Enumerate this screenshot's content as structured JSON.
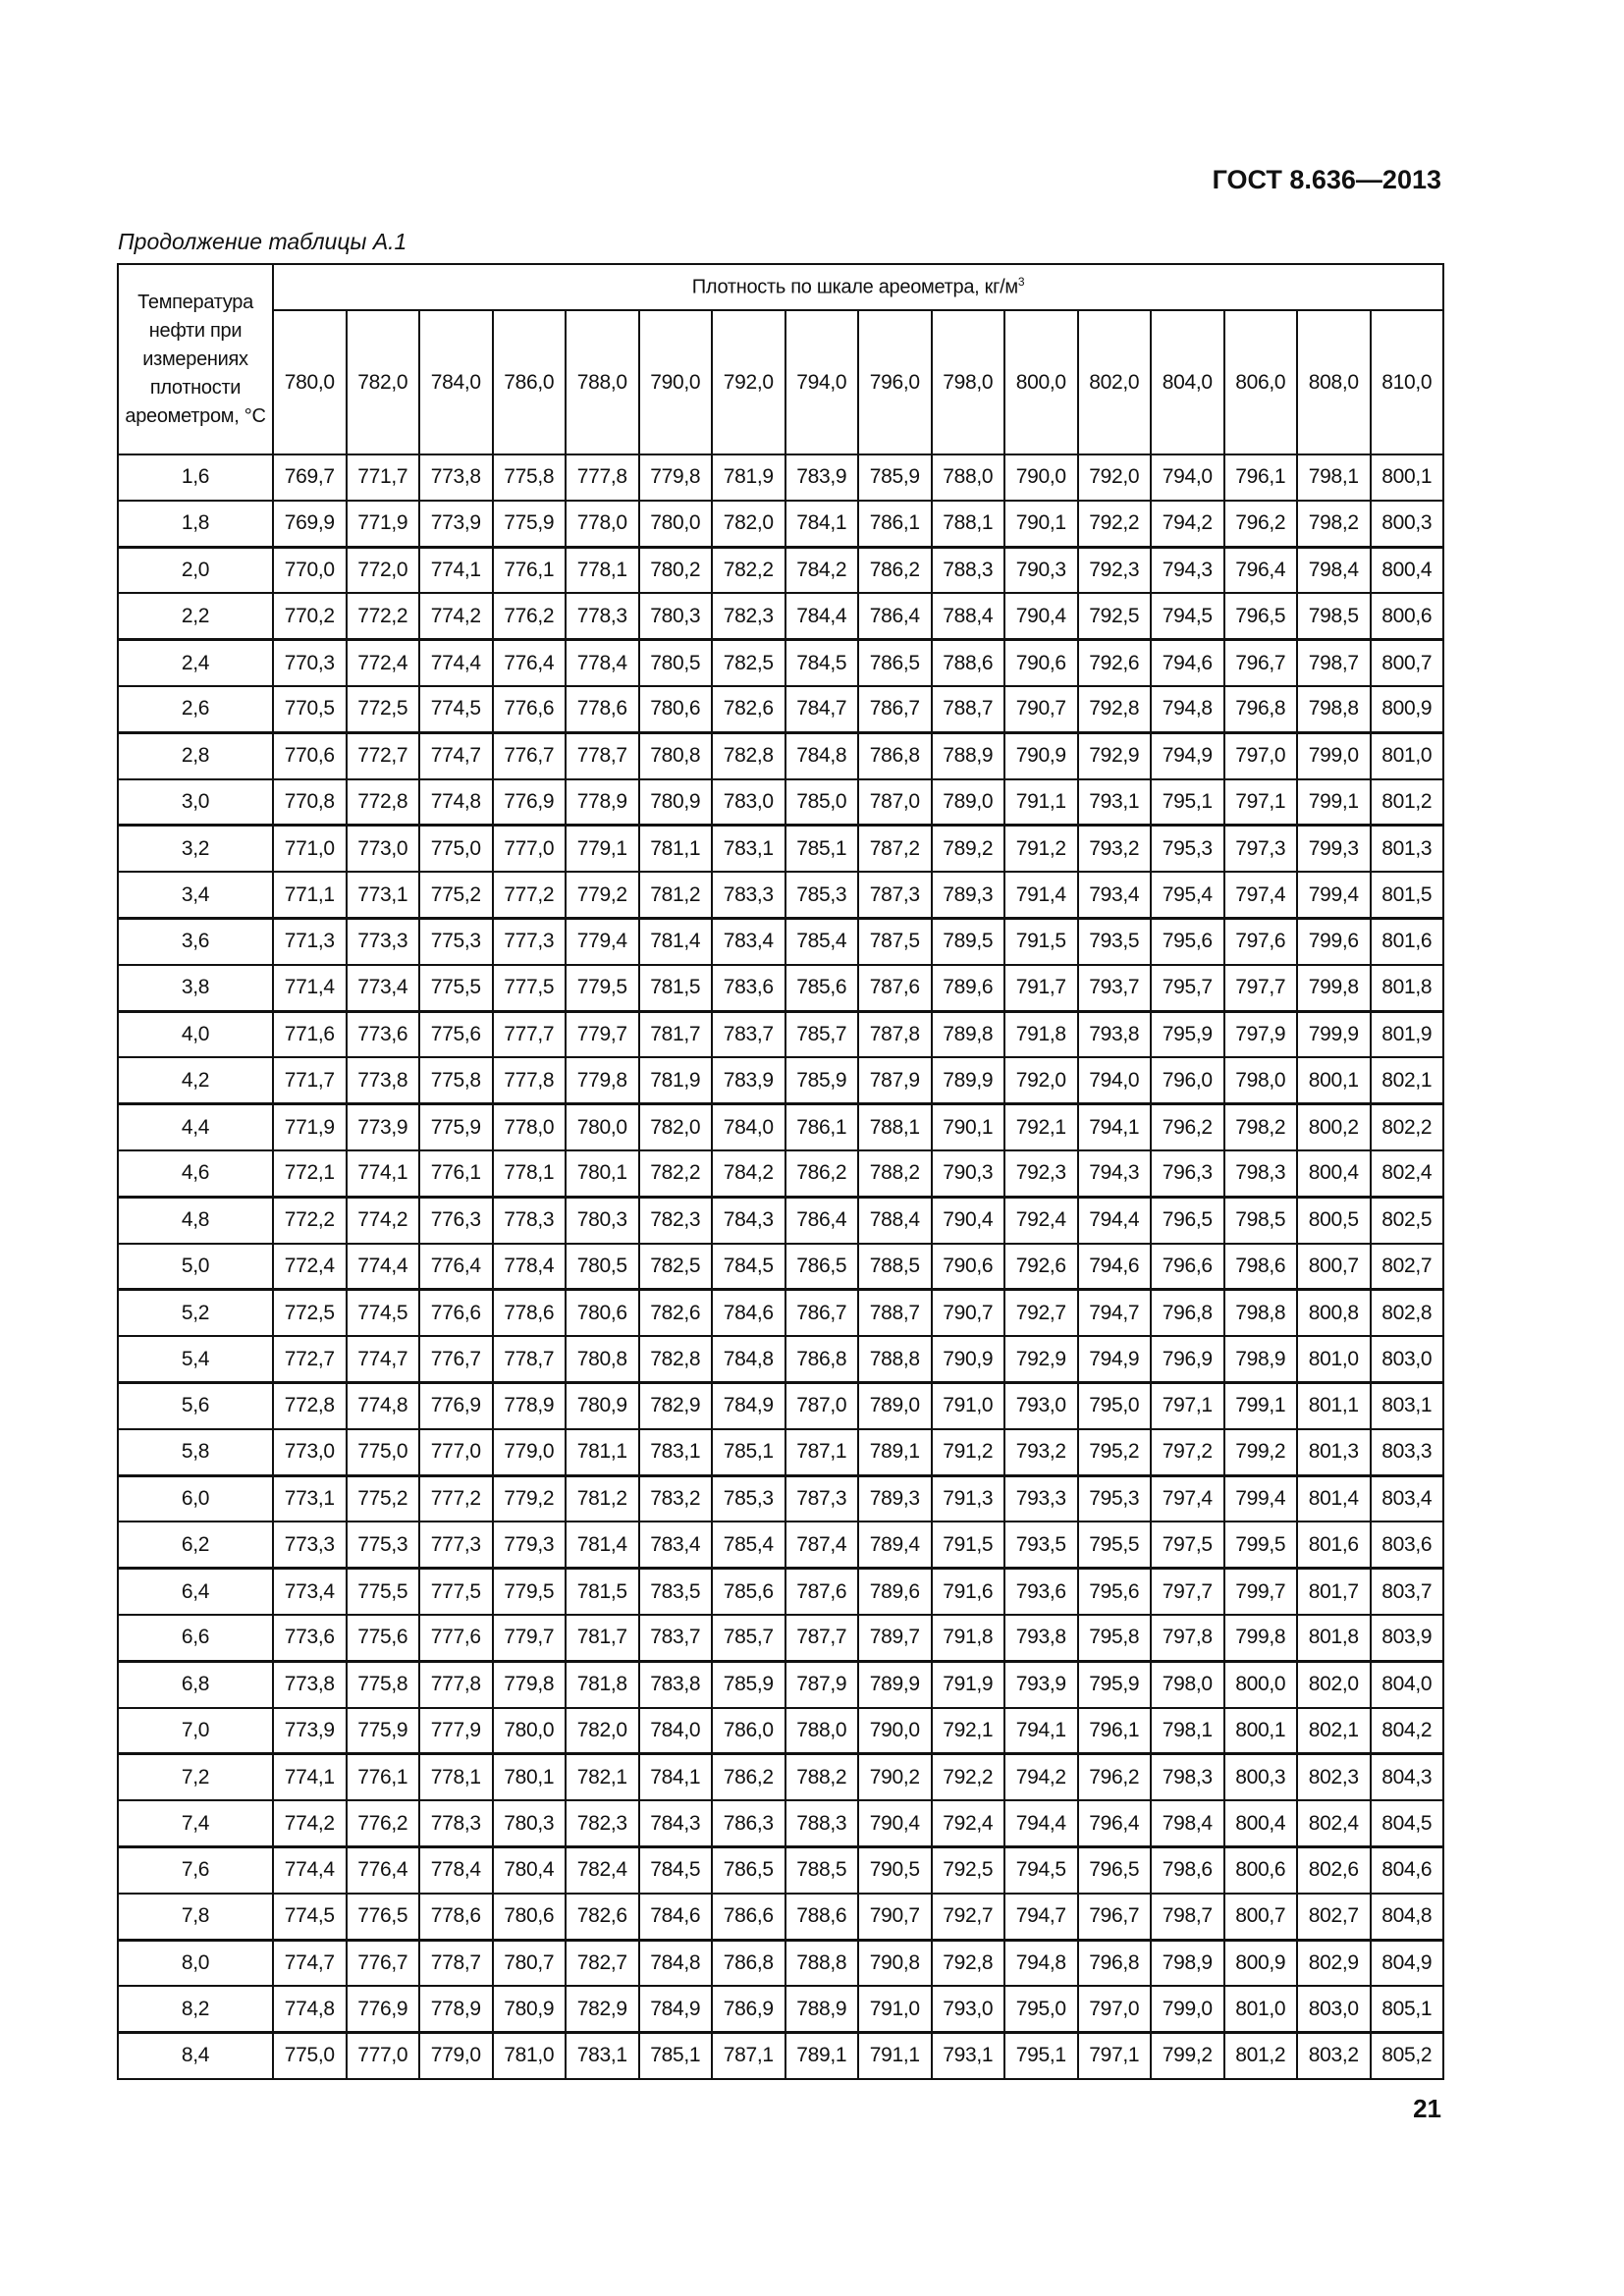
{
  "document_code": "ГОСТ 8.636—2013",
  "caption": "Продолжение таблицы А.1",
  "page_number": "21",
  "table": {
    "row_header": "Температура нефти при измерениях плотности ареометром, °С",
    "group_header": "Плотность по шкале ареометра, кг/м",
    "group_header_sup": "3",
    "columns": [
      "780,0",
      "782,0",
      "784,0",
      "786,0",
      "788,0",
      "790,0",
      "792,0",
      "794,0",
      "796,0",
      "798,0",
      "800,0",
      "802,0",
      "804,0",
      "806,0",
      "808,0",
      "810,0"
    ],
    "rows": [
      {
        "t": "1,6",
        "v": [
          "769,7",
          "771,7",
          "773,8",
          "775,8",
          "777,8",
          "779,8",
          "781,9",
          "783,9",
          "785,9",
          "788,0",
          "790,0",
          "792,0",
          "794,0",
          "796,1",
          "798,1",
          "800,1"
        ]
      },
      {
        "t": "1,8",
        "v": [
          "769,9",
          "771,9",
          "773,9",
          "775,9",
          "778,0",
          "780,0",
          "782,0",
          "784,1",
          "786,1",
          "788,1",
          "790,1",
          "792,2",
          "794,2",
          "796,2",
          "798,2",
          "800,3"
        ]
      },
      {
        "t": "2,0",
        "v": [
          "770,0",
          "772,0",
          "774,1",
          "776,1",
          "778,1",
          "780,2",
          "782,2",
          "784,2",
          "786,2",
          "788,3",
          "790,3",
          "792,3",
          "794,3",
          "796,4",
          "798,4",
          "800,4"
        ]
      },
      {
        "t": "2,2",
        "v": [
          "770,2",
          "772,2",
          "774,2",
          "776,2",
          "778,3",
          "780,3",
          "782,3",
          "784,4",
          "786,4",
          "788,4",
          "790,4",
          "792,5",
          "794,5",
          "796,5",
          "798,5",
          "800,6"
        ]
      },
      {
        "t": "2,4",
        "v": [
          "770,3",
          "772,4",
          "774,4",
          "776,4",
          "778,4",
          "780,5",
          "782,5",
          "784,5",
          "786,5",
          "788,6",
          "790,6",
          "792,6",
          "794,6",
          "796,7",
          "798,7",
          "800,7"
        ]
      },
      {
        "t": "2,6",
        "v": [
          "770,5",
          "772,5",
          "774,5",
          "776,6",
          "778,6",
          "780,6",
          "782,6",
          "784,7",
          "786,7",
          "788,7",
          "790,7",
          "792,8",
          "794,8",
          "796,8",
          "798,8",
          "800,9"
        ]
      },
      {
        "t": "2,8",
        "v": [
          "770,6",
          "772,7",
          "774,7",
          "776,7",
          "778,7",
          "780,8",
          "782,8",
          "784,8",
          "786,8",
          "788,9",
          "790,9",
          "792,9",
          "794,9",
          "797,0",
          "799,0",
          "801,0"
        ]
      },
      {
        "t": "3,0",
        "v": [
          "770,8",
          "772,8",
          "774,8",
          "776,9",
          "778,9",
          "780,9",
          "783,0",
          "785,0",
          "787,0",
          "789,0",
          "791,1",
          "793,1",
          "795,1",
          "797,1",
          "799,1",
          "801,2"
        ]
      },
      {
        "t": "3,2",
        "v": [
          "771,0",
          "773,0",
          "775,0",
          "777,0",
          "779,1",
          "781,1",
          "783,1",
          "785,1",
          "787,2",
          "789,2",
          "791,2",
          "793,2",
          "795,3",
          "797,3",
          "799,3",
          "801,3"
        ]
      },
      {
        "t": "3,4",
        "v": [
          "771,1",
          "773,1",
          "775,2",
          "777,2",
          "779,2",
          "781,2",
          "783,3",
          "785,3",
          "787,3",
          "789,3",
          "791,4",
          "793,4",
          "795,4",
          "797,4",
          "799,4",
          "801,5"
        ]
      },
      {
        "t": "3,6",
        "v": [
          "771,3",
          "773,3",
          "775,3",
          "777,3",
          "779,4",
          "781,4",
          "783,4",
          "785,4",
          "787,5",
          "789,5",
          "791,5",
          "793,5",
          "795,6",
          "797,6",
          "799,6",
          "801,6"
        ]
      },
      {
        "t": "3,8",
        "v": [
          "771,4",
          "773,4",
          "775,5",
          "777,5",
          "779,5",
          "781,5",
          "783,6",
          "785,6",
          "787,6",
          "789,6",
          "791,7",
          "793,7",
          "795,7",
          "797,7",
          "799,8",
          "801,8"
        ]
      },
      {
        "t": "4,0",
        "v": [
          "771,6",
          "773,6",
          "775,6",
          "777,7",
          "779,7",
          "781,7",
          "783,7",
          "785,7",
          "787,8",
          "789,8",
          "791,8",
          "793,8",
          "795,9",
          "797,9",
          "799,9",
          "801,9"
        ]
      },
      {
        "t": "4,2",
        "v": [
          "771,7",
          "773,8",
          "775,8",
          "777,8",
          "779,8",
          "781,9",
          "783,9",
          "785,9",
          "787,9",
          "789,9",
          "792,0",
          "794,0",
          "796,0",
          "798,0",
          "800,1",
          "802,1"
        ]
      },
      {
        "t": "4,4",
        "v": [
          "771,9",
          "773,9",
          "775,9",
          "778,0",
          "780,0",
          "782,0",
          "784,0",
          "786,1",
          "788,1",
          "790,1",
          "792,1",
          "794,1",
          "796,2",
          "798,2",
          "800,2",
          "802,2"
        ]
      },
      {
        "t": "4,6",
        "v": [
          "772,1",
          "774,1",
          "776,1",
          "778,1",
          "780,1",
          "782,2",
          "784,2",
          "786,2",
          "788,2",
          "790,3",
          "792,3",
          "794,3",
          "796,3",
          "798,3",
          "800,4",
          "802,4"
        ]
      },
      {
        "t": "4,8",
        "v": [
          "772,2",
          "774,2",
          "776,3",
          "778,3",
          "780,3",
          "782,3",
          "784,3",
          "786,4",
          "788,4",
          "790,4",
          "792,4",
          "794,4",
          "796,5",
          "798,5",
          "800,5",
          "802,5"
        ]
      },
      {
        "t": "5,0",
        "v": [
          "772,4",
          "774,4",
          "776,4",
          "778,4",
          "780,5",
          "782,5",
          "784,5",
          "786,5",
          "788,5",
          "790,6",
          "792,6",
          "794,6",
          "796,6",
          "798,6",
          "800,7",
          "802,7"
        ]
      },
      {
        "t": "5,2",
        "v": [
          "772,5",
          "774,5",
          "776,6",
          "778,6",
          "780,6",
          "782,6",
          "784,6",
          "786,7",
          "788,7",
          "790,7",
          "792,7",
          "794,7",
          "796,8",
          "798,8",
          "800,8",
          "802,8"
        ]
      },
      {
        "t": "5,4",
        "v": [
          "772,7",
          "774,7",
          "776,7",
          "778,7",
          "780,8",
          "782,8",
          "784,8",
          "786,8",
          "788,8",
          "790,9",
          "792,9",
          "794,9",
          "796,9",
          "798,9",
          "801,0",
          "803,0"
        ]
      },
      {
        "t": "5,6",
        "v": [
          "772,8",
          "774,8",
          "776,9",
          "778,9",
          "780,9",
          "782,9",
          "784,9",
          "787,0",
          "789,0",
          "791,0",
          "793,0",
          "795,0",
          "797,1",
          "799,1",
          "801,1",
          "803,1"
        ]
      },
      {
        "t": "5,8",
        "v": [
          "773,0",
          "775,0",
          "777,0",
          "779,0",
          "781,1",
          "783,1",
          "785,1",
          "787,1",
          "789,1",
          "791,2",
          "793,2",
          "795,2",
          "797,2",
          "799,2",
          "801,3",
          "803,3"
        ]
      },
      {
        "t": "6,0",
        "v": [
          "773,1",
          "775,2",
          "777,2",
          "779,2",
          "781,2",
          "783,2",
          "785,3",
          "787,3",
          "789,3",
          "791,3",
          "793,3",
          "795,3",
          "797,4",
          "799,4",
          "801,4",
          "803,4"
        ]
      },
      {
        "t": "6,2",
        "v": [
          "773,3",
          "775,3",
          "777,3",
          "779,3",
          "781,4",
          "783,4",
          "785,4",
          "787,4",
          "789,4",
          "791,5",
          "793,5",
          "795,5",
          "797,5",
          "799,5",
          "801,6",
          "803,6"
        ]
      },
      {
        "t": "6,4",
        "v": [
          "773,4",
          "775,5",
          "777,5",
          "779,5",
          "781,5",
          "783,5",
          "785,6",
          "787,6",
          "789,6",
          "791,6",
          "793,6",
          "795,6",
          "797,7",
          "799,7",
          "801,7",
          "803,7"
        ]
      },
      {
        "t": "6,6",
        "v": [
          "773,6",
          "775,6",
          "777,6",
          "779,7",
          "781,7",
          "783,7",
          "785,7",
          "787,7",
          "789,7",
          "791,8",
          "793,8",
          "795,8",
          "797,8",
          "799,8",
          "801,8",
          "803,9"
        ]
      },
      {
        "t": "6,8",
        "v": [
          "773,8",
          "775,8",
          "777,8",
          "779,8",
          "781,8",
          "783,8",
          "785,9",
          "787,9",
          "789,9",
          "791,9",
          "793,9",
          "795,9",
          "798,0",
          "800,0",
          "802,0",
          "804,0"
        ]
      },
      {
        "t": "7,0",
        "v": [
          "773,9",
          "775,9",
          "777,9",
          "780,0",
          "782,0",
          "784,0",
          "786,0",
          "788,0",
          "790,0",
          "792,1",
          "794,1",
          "796,1",
          "798,1",
          "800,1",
          "802,1",
          "804,2"
        ]
      },
      {
        "t": "7,2",
        "v": [
          "774,1",
          "776,1",
          "778,1",
          "780,1",
          "782,1",
          "784,1",
          "786,2",
          "788,2",
          "790,2",
          "792,2",
          "794,2",
          "796,2",
          "798,3",
          "800,3",
          "802,3",
          "804,3"
        ]
      },
      {
        "t": "7,4",
        "v": [
          "774,2",
          "776,2",
          "778,3",
          "780,3",
          "782,3",
          "784,3",
          "786,3",
          "788,3",
          "790,4",
          "792,4",
          "794,4",
          "796,4",
          "798,4",
          "800,4",
          "802,4",
          "804,5"
        ]
      },
      {
        "t": "7,6",
        "v": [
          "774,4",
          "776,4",
          "778,4",
          "780,4",
          "782,4",
          "784,5",
          "786,5",
          "788,5",
          "790,5",
          "792,5",
          "794,5",
          "796,5",
          "798,6",
          "800,6",
          "802,6",
          "804,6"
        ]
      },
      {
        "t": "7,8",
        "v": [
          "774,5",
          "776,5",
          "778,6",
          "780,6",
          "782,6",
          "784,6",
          "786,6",
          "788,6",
          "790,7",
          "792,7",
          "794,7",
          "796,7",
          "798,7",
          "800,7",
          "802,7",
          "804,8"
        ]
      },
      {
        "t": "8,0",
        "v": [
          "774,7",
          "776,7",
          "778,7",
          "780,7",
          "782,7",
          "784,8",
          "786,8",
          "788,8",
          "790,8",
          "792,8",
          "794,8",
          "796,8",
          "798,9",
          "800,9",
          "802,9",
          "804,9"
        ]
      },
      {
        "t": "8,2",
        "v": [
          "774,8",
          "776,9",
          "778,9",
          "780,9",
          "782,9",
          "784,9",
          "786,9",
          "788,9",
          "791,0",
          "793,0",
          "795,0",
          "797,0",
          "799,0",
          "801,0",
          "803,0",
          "805,1"
        ]
      },
      {
        "t": "8,4",
        "v": [
          "775,0",
          "777,0",
          "779,0",
          "781,0",
          "783,1",
          "785,1",
          "787,1",
          "789,1",
          "791,1",
          "793,1",
          "795,1",
          "797,1",
          "799,2",
          "801,2",
          "803,2",
          "805,2"
        ]
      }
    ]
  }
}
